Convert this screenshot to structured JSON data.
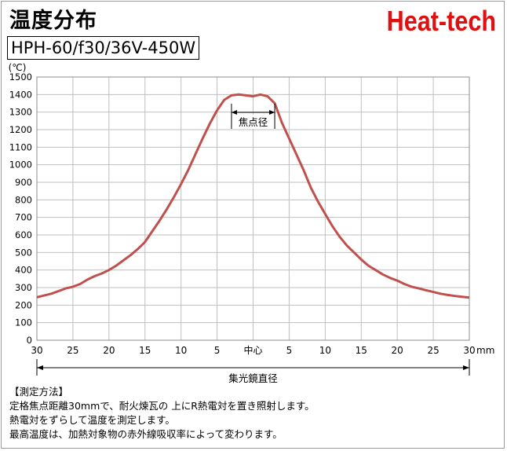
{
  "header": {
    "title": "温度分布",
    "brand": "Heat-tech",
    "model": "HPH-60/f30/36V-450W"
  },
  "notes": {
    "heading": "【測定方法】",
    "lines": [
      "定格焦点距離30mmで、耐火煉瓦の 上にR熱電対を置き照射します。",
      "熱電対をずらして温度を測定します。",
      "最高温度は、加熱対象物の赤外線吸収率によって変わります。"
    ]
  },
  "colors": {
    "line": "#c0504d",
    "grid": "#bfbfbf",
    "title": "#000000",
    "brand": "#e01010"
  },
  "chart_data": {
    "type": "line",
    "title": "",
    "ylabel": "(℃)",
    "xlabel": "mm",
    "ylim": [
      0,
      1500
    ],
    "yticks": [
      0,
      100,
      200,
      300,
      400,
      500,
      600,
      700,
      800,
      900,
      1000,
      1100,
      1200,
      1300,
      1400,
      1500
    ],
    "xlim": [
      -30,
      30
    ],
    "xtick_values": [
      -30,
      -25,
      -20,
      -15,
      -10,
      -5,
      0,
      5,
      10,
      15,
      20,
      25,
      30
    ],
    "xtick_labels": [
      "30",
      "25",
      "20",
      "15",
      "10",
      "5",
      "中心",
      "5",
      "10",
      "15",
      "20",
      "25",
      "30"
    ],
    "grid": true,
    "annotations": {
      "focal_label": "焦点径",
      "focal_range": [
        -3,
        3
      ],
      "diameter_label": "集光鏡直径"
    },
    "series": [
      {
        "x": [
          -30,
          -29,
          -28,
          -27,
          -26,
          -25,
          -24,
          -23,
          -22,
          -21,
          -20,
          -19,
          -18,
          -17,
          -16,
          -15,
          -14,
          -13,
          -12,
          -11,
          -10,
          -9,
          -8,
          -7,
          -6,
          -5,
          -4,
          -3,
          -2,
          -1,
          0,
          1,
          2,
          3,
          4,
          5,
          6,
          7,
          8,
          9,
          10,
          11,
          12,
          13,
          14,
          15,
          16,
          17,
          18,
          19,
          20,
          21,
          22,
          23,
          24,
          25,
          26,
          27,
          28,
          29,
          30
        ],
        "values": [
          245,
          255,
          265,
          280,
          295,
          305,
          320,
          345,
          365,
          380,
          400,
          425,
          455,
          485,
          520,
          560,
          620,
          680,
          745,
          815,
          890,
          970,
          1060,
          1150,
          1235,
          1310,
          1370,
          1395,
          1400,
          1395,
          1390,
          1400,
          1390,
          1350,
          1240,
          1150,
          1060,
          970,
          870,
          790,
          720,
          650,
          590,
          540,
          500,
          460,
          425,
          400,
          375,
          355,
          340,
          320,
          305,
          295,
          285,
          275,
          265,
          258,
          252,
          247,
          243
        ]
      }
    ]
  }
}
